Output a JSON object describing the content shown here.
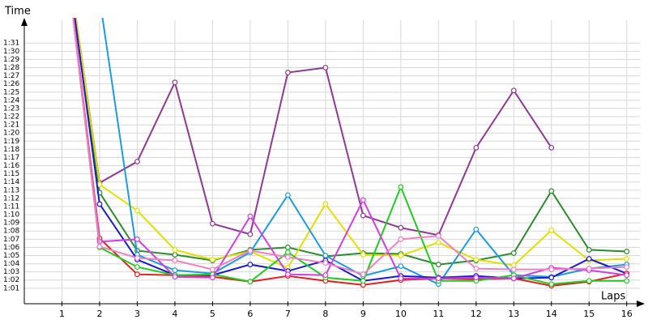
{
  "chart_data": {
    "type": "line",
    "y_label": "Time",
    "x_label": "Laps",
    "x": [
      1,
      2,
      3,
      4,
      5,
      6,
      7,
      8,
      9,
      10,
      11,
      12,
      13,
      14,
      15,
      16
    ],
    "xlim": [
      0,
      16.35
    ],
    "xticks": [
      1,
      2,
      3,
      4,
      5,
      6,
      7,
      8,
      9,
      10,
      11,
      12,
      13,
      14,
      15,
      16
    ],
    "ylim": [
      59.1,
      93.8
    ],
    "yticks": [
      {
        "value": 61,
        "label": "1:01"
      },
      {
        "value": 62,
        "label": "1:02"
      },
      {
        "value": 63,
        "label": "1:03"
      },
      {
        "value": 64,
        "label": "1:04"
      },
      {
        "value": 65,
        "label": "1:05"
      },
      {
        "value": 66,
        "label": "1:06"
      },
      {
        "value": 67,
        "label": "1:07"
      },
      {
        "value": 68,
        "label": "1:08"
      },
      {
        "value": 69,
        "label": "1:09"
      },
      {
        "value": 70,
        "label": "1:10"
      },
      {
        "value": 71,
        "label": "1:11"
      },
      {
        "value": 72,
        "label": "1:12"
      },
      {
        "value": 73,
        "label": "1:13"
      },
      {
        "value": 74,
        "label": "1:14"
      },
      {
        "value": 75,
        "label": "1:15"
      },
      {
        "value": 76,
        "label": "1:16"
      },
      {
        "value": 77,
        "label": "1:17"
      },
      {
        "value": 78,
        "label": "1:18"
      },
      {
        "value": 79,
        "label": "1:19"
      },
      {
        "value": 80,
        "label": "1:20"
      },
      {
        "value": 81,
        "label": "1:21"
      },
      {
        "value": 82,
        "label": "1:22"
      },
      {
        "value": 83,
        "label": "1:23"
      },
      {
        "value": 84,
        "label": "1:24"
      },
      {
        "value": 85,
        "label": "1:25"
      },
      {
        "value": 86,
        "label": "1:26"
      },
      {
        "value": 87,
        "label": "1:27"
      },
      {
        "value": 88,
        "label": "1:28"
      },
      {
        "value": 89,
        "label": "1:29"
      },
      {
        "value": 90,
        "label": "1:30"
      },
      {
        "value": 91,
        "label": "1:31"
      }
    ],
    "grid": true,
    "series": [
      {
        "color": "#8e3a92",
        "values": [
          106,
          73.9,
          76.5,
          86.2,
          68.9,
          67.6,
          87.4,
          88.0,
          69.9,
          68.4,
          67.5,
          78.2,
          85.2,
          78.2,
          null,
          null
        ]
      },
      {
        "color": "#2e8b2e",
        "values": [
          106,
          72.7,
          65.6,
          65.1,
          64.4,
          65.7,
          66.0,
          64.9,
          65.3,
          65.2,
          63.9,
          64.4,
          65.3,
          72.9,
          65.7,
          65.5
        ]
      },
      {
        "color": "#e0e000",
        "values": [
          106,
          73.7,
          70.5,
          65.7,
          64.5,
          65.5,
          63.5,
          71.3,
          65.1,
          65.0,
          66.6,
          64.5,
          63.8,
          68.1,
          64.4,
          64.6
        ]
      },
      {
        "color": "#1e9be0",
        "values": [
          null,
          96.5,
          65.1,
          63.2,
          62.8,
          65.4,
          72.4,
          65.0,
          62.5,
          63.7,
          61.5,
          68.2,
          62.6,
          62.4,
          63.4,
          63.9
        ]
      },
      {
        "color": "#1a1acc",
        "values": [
          106,
          71.3,
          64.5,
          62.6,
          62.6,
          63.9,
          63.1,
          64.4,
          61.9,
          62.5,
          62.3,
          62.5,
          62.2,
          62.3,
          64.6,
          62.8
        ]
      },
      {
        "color": "#e02020",
        "values": [
          106,
          67.1,
          62.7,
          62.6,
          62.4,
          61.8,
          62.5,
          61.9,
          61.4,
          62.0,
          62.2,
          62.1,
          62.2,
          61.3,
          61.8,
          62.8
        ]
      },
      {
        "color": "#20cc20",
        "values": [
          106,
          66.0,
          63.6,
          62.6,
          62.7,
          61.8,
          65.4,
          62.3,
          61.9,
          73.4,
          61.9,
          61.9,
          62.6,
          61.5,
          61.9,
          61.9
        ]
      },
      {
        "color": "#d040e0",
        "values": [
          106,
          66.7,
          67.0,
          62.4,
          62.3,
          69.8,
          62.7,
          62.6,
          71.8,
          62.2,
          62.2,
          62.3,
          62.2,
          63.5,
          63.2,
          62.6
        ]
      },
      {
        "color": "#f080c0",
        "values": [
          106,
          66.1,
          64.7,
          64.4,
          63.3,
          65.6,
          64.8,
          64.1,
          62.7,
          67.0,
          67.4,
          63.4,
          63.3,
          63.3,
          63.4,
          63.6
        ]
      }
    ]
  }
}
